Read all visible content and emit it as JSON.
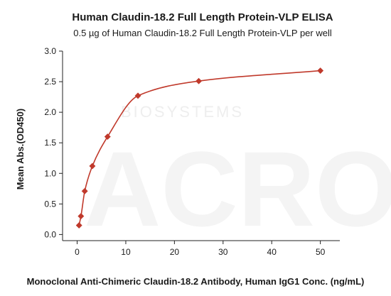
{
  "chart_data": {
    "type": "scatter",
    "title": "Human Claudin-18.2 Full Length Protein-VLP ELISA",
    "subtitle": "0.5 µg of Human Claudin-18.2 Full Length Protein-VLP per well",
    "xlabel": "Monoclonal Anti-Chimeric Claudin-18.2 Antibody, Human IgG1 Conc. (ng/mL)",
    "ylabel": "Mean Abs.(OD450)",
    "xlim": [
      -3,
      54
    ],
    "ylim": [
      -0.1,
      3.0
    ],
    "xticks": [
      0,
      10,
      20,
      30,
      40,
      50
    ],
    "yticks": [
      0.0,
      0.5,
      1.0,
      1.5,
      2.0,
      2.5,
      3.0
    ],
    "xtick_labels": [
      "0",
      "10",
      "20",
      "30",
      "40",
      "50"
    ],
    "ytick_labels": [
      "0.0",
      "0.5",
      "1.0",
      "1.5",
      "2.0",
      "2.5",
      "3.0"
    ],
    "grid": false,
    "legend": "none",
    "series": [
      {
        "x": [
          0.39,
          0.78,
          1.56,
          3.125,
          6.25,
          12.5,
          25,
          50
        ],
        "y": [
          0.15,
          0.3,
          0.71,
          1.12,
          1.6,
          2.27,
          2.51,
          2.68
        ],
        "color": "#c0392b",
        "marker": "diamond",
        "fit": "four-parameter-logistic"
      }
    ]
  },
  "watermark": {
    "brand": "ACRO",
    "text": "BIOSYSTEMS"
  },
  "colors": {
    "series": "#c0392b",
    "axis": "#222222",
    "text": "#1a1a1a"
  }
}
